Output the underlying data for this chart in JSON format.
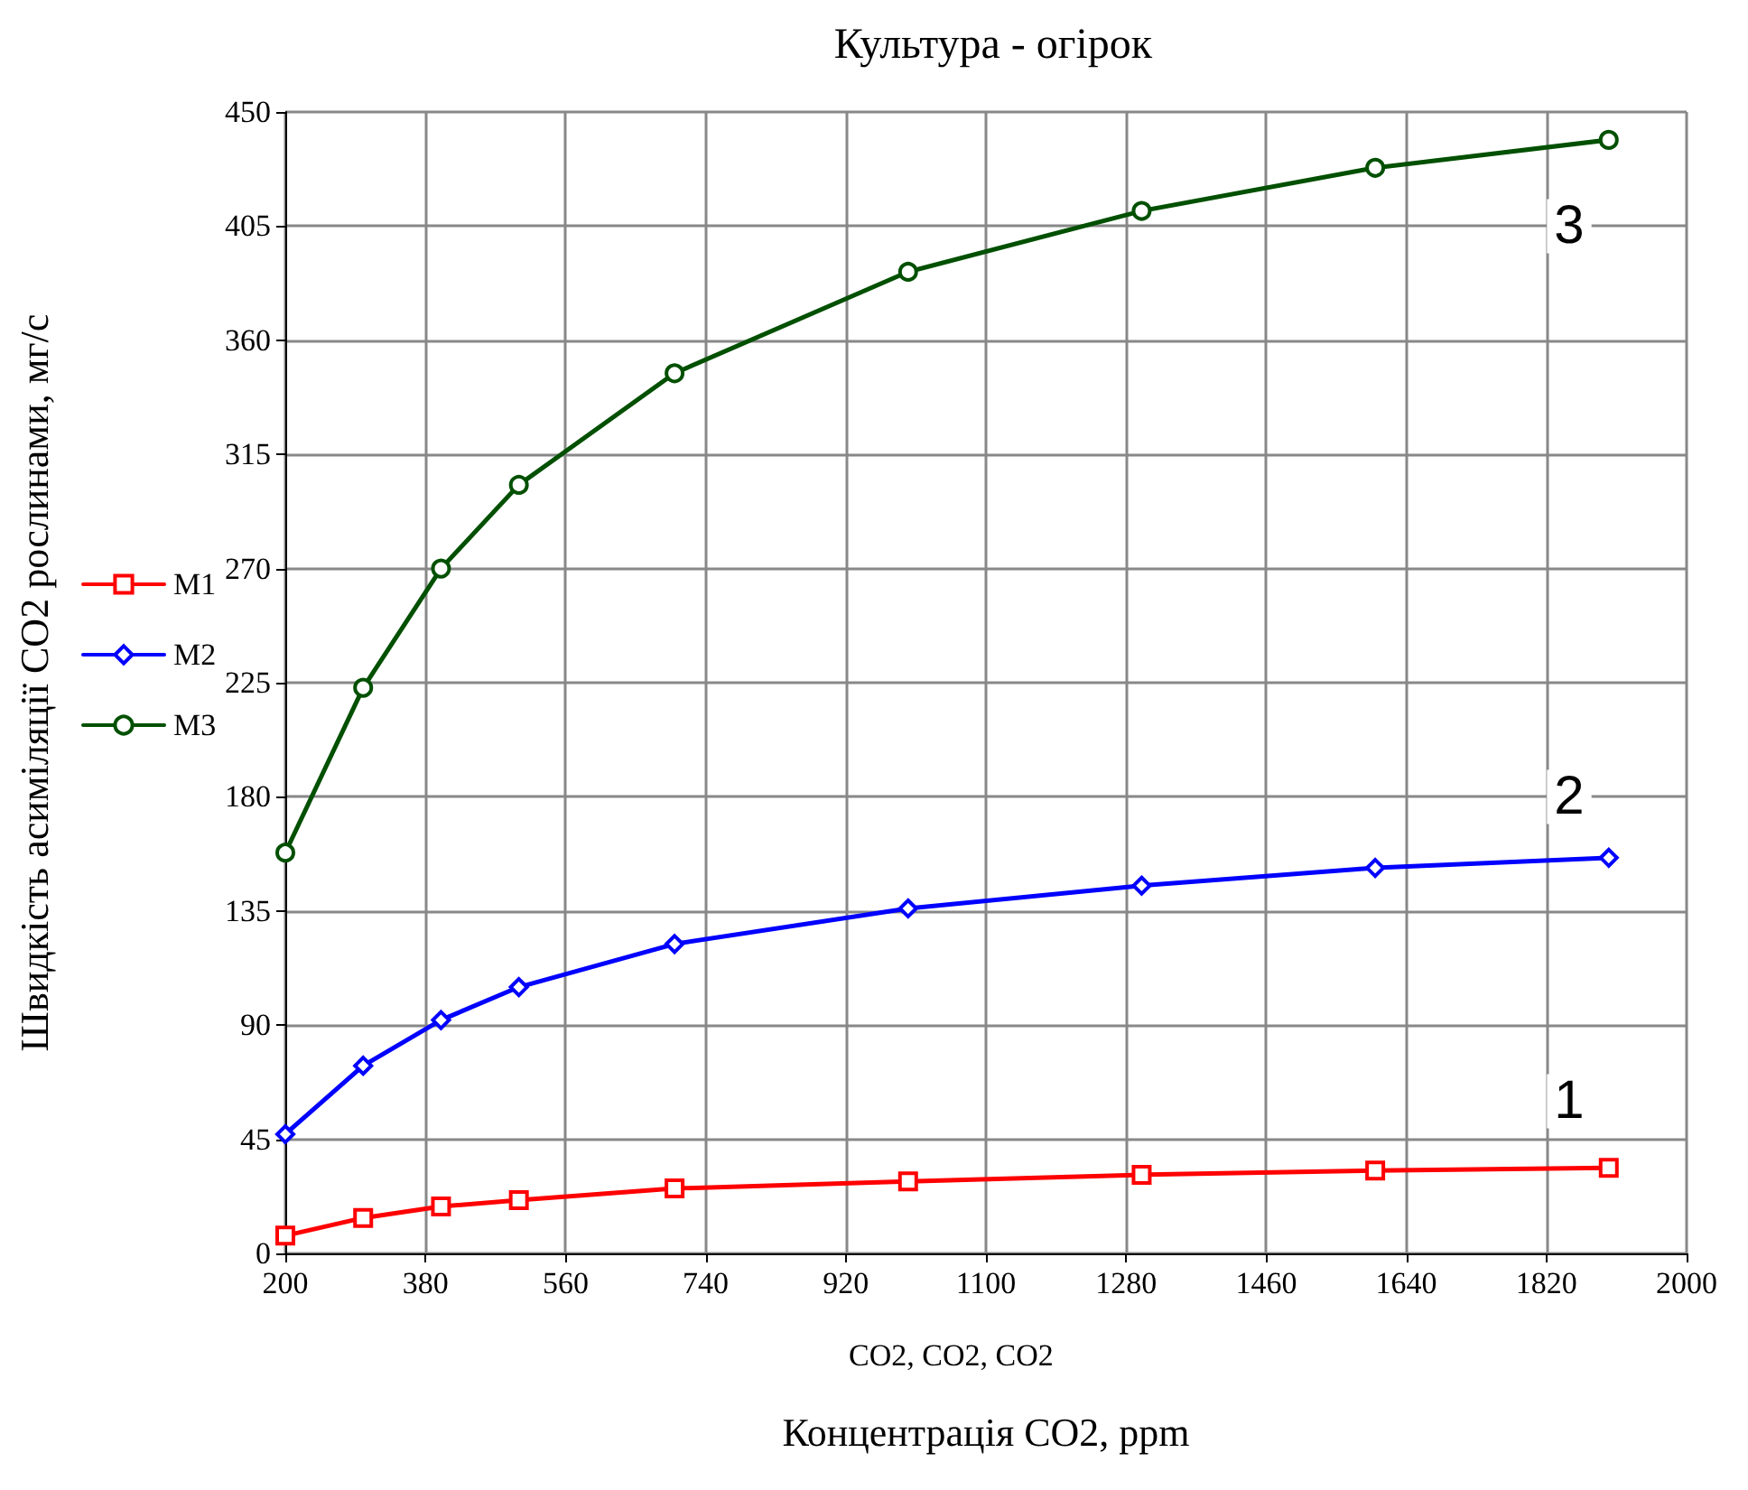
{
  "chart_data": {
    "type": "line",
    "title": "Культура - огірок",
    "xlabel": "Концентрація CO2, ppm",
    "ylabel": "Швидкість асиміляції CO2 рослинами, мг/с",
    "x": [
      200,
      300,
      400,
      500,
      700,
      1000,
      1300,
      1600,
      1900
    ],
    "series": [
      {
        "name": "M1",
        "color": "#ff0000",
        "marker": "square",
        "values": [
          7,
          14,
          18.5,
          21,
          25.6,
          28.4,
          31,
          32.7,
          33.7
        ]
      },
      {
        "name": "M2",
        "color": "#0000ff",
        "marker": "diamond",
        "values": [
          47,
          74,
          92,
          105,
          122,
          136,
          145,
          152,
          156
        ]
      },
      {
        "name": "M3",
        "color": "#005000",
        "marker": "circle",
        "values": [
          158,
          223,
          270,
          303,
          347,
          387,
          411,
          428,
          439
        ]
      }
    ],
    "xlim": [
      200,
      2000
    ],
    "xticks": [
      200,
      380,
      560,
      740,
      920,
      1100,
      1280,
      1460,
      1640,
      1820,
      2000
    ],
    "ylim": [
      0,
      450
    ],
    "yticks": [
      0,
      45,
      90,
      135,
      180,
      225,
      270,
      315,
      360,
      405,
      450
    ],
    "grid": true,
    "legend": "left",
    "line_style": "solid",
    "annotations": [
      {
        "text": "1",
        "y": 60
      },
      {
        "text": "2",
        "y": 180
      },
      {
        "text": "3",
        "y": 405
      },
      "CO2, CO2, CO2"
    ]
  }
}
